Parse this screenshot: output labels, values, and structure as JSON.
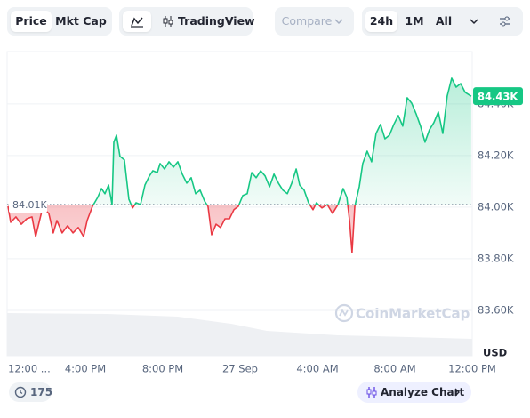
{
  "toolbar": {
    "price": "Price",
    "mkt_cap": "Mkt Cap",
    "tradingview": "TradingView",
    "compare": "Compare",
    "range_24h": "24h",
    "range_1m": "1M",
    "range_all": "All"
  },
  "chart_data": {
    "type": "line",
    "x": [
      12.0,
      12.14,
      12.41,
      12.69,
      12.97,
      13.24,
      13.43,
      13.61,
      13.79,
      14.11,
      14.34,
      14.53,
      14.8,
      15.08,
      15.36,
      15.63,
      15.91,
      16.09,
      16.37,
      16.64,
      16.83,
      17.01,
      17.2,
      17.38,
      17.47,
      17.61,
      17.79,
      18.02,
      18.25,
      18.44,
      18.62,
      18.85,
      19.08,
      19.31,
      19.49,
      19.72,
      19.86,
      20.09,
      20.32,
      20.55,
      20.78,
      21.01,
      21.24,
      21.47,
      21.7,
      21.93,
      22.16,
      22.34,
      22.53,
      22.76,
      22.99,
      23.22,
      23.45,
      23.68,
      23.91,
      24.14,
      24.37,
      24.6,
      24.83,
      25.06,
      25.29,
      25.52,
      25.75,
      25.98,
      26.21,
      26.44,
      26.67,
      26.9,
      27.08,
      27.31,
      27.54,
      27.77,
      27.95,
      28.23,
      28.51,
      28.78,
      29.06,
      29.33,
      29.52,
      29.66,
      29.79,
      29.93,
      30.16,
      30.34,
      30.57,
      30.8,
      31.03,
      31.26,
      31.49,
      31.72,
      31.95,
      32.18,
      32.41,
      32.64,
      32.87,
      33.1,
      33.33,
      33.56,
      33.79,
      34.02,
      34.25,
      34.48,
      34.71,
      34.94,
      35.17,
      35.4,
      35.63,
      35.95
    ],
    "values": [
      84003,
      83941,
      83962,
      83934,
      83955,
      83962,
      83886,
      83941,
      83997,
      83976,
      83900,
      83948,
      83900,
      83928,
      83900,
      83921,
      83886,
      83948,
      84003,
      84038,
      84072,
      84052,
      84086,
      84010,
      84252,
      84279,
      84197,
      84183,
      84031,
      83997,
      84017,
      84010,
      84086,
      84121,
      84141,
      84134,
      84169,
      84148,
      84176,
      84155,
      84176,
      84128,
      84093,
      84114,
      84052,
      84066,
      84024,
      84003,
      83893,
      83934,
      83921,
      83955,
      83955,
      83990,
      84003,
      84045,
      84052,
      84134,
      84114,
      84141,
      84121,
      84079,
      84128,
      84093,
      84066,
      84052,
      84093,
      84148,
      84086,
      84066,
      84017,
      83990,
      84017,
      83997,
      84010,
      83976,
      84010,
      84072,
      84038,
      83948,
      83824,
      84003,
      84079,
      84169,
      84217,
      84176,
      84286,
      84321,
      84265,
      84279,
      84321,
      84355,
      84314,
      84424,
      84403,
      84362,
      84314,
      84252,
      84300,
      84328,
      84369,
      84286,
      84431,
      84500,
      84465,
      84479,
      84445,
      84430
    ],
    "xlim": [
      12,
      36
    ],
    "ylim": [
      83424,
      84603
    ],
    "xticks": [
      {
        "value": 12,
        "label": "12:00 ..."
      },
      {
        "value": 16,
        "label": "4:00 PM"
      },
      {
        "value": 20,
        "label": "8:00 PM"
      },
      {
        "value": 24,
        "label": "27 Sep"
      },
      {
        "value": 28,
        "label": "4:00 AM"
      },
      {
        "value": 32,
        "label": "8:00 AM"
      },
      {
        "value": 36,
        "label": "12:00 PM"
      }
    ],
    "yticks": [
      {
        "value": 84400,
        "label": "84.40K"
      },
      {
        "value": 84200,
        "label": "84.20K"
      },
      {
        "value": 84000,
        "label": "84.00K"
      },
      {
        "value": 83800,
        "label": "83.80K"
      },
      {
        "value": 83600,
        "label": "83.60K"
      }
    ],
    "baseline": {
      "value": 84010,
      "label": "84.01K"
    },
    "price_label": {
      "value": 84430,
      "label": "84.43K"
    },
    "y_unit": "USD",
    "watermark": "CoinMarketCap",
    "up_color": "#16c784",
    "down_color": "#ea3943",
    "grid": true
  },
  "footer": {
    "count": "175",
    "analyze": "Analyze Chart"
  }
}
